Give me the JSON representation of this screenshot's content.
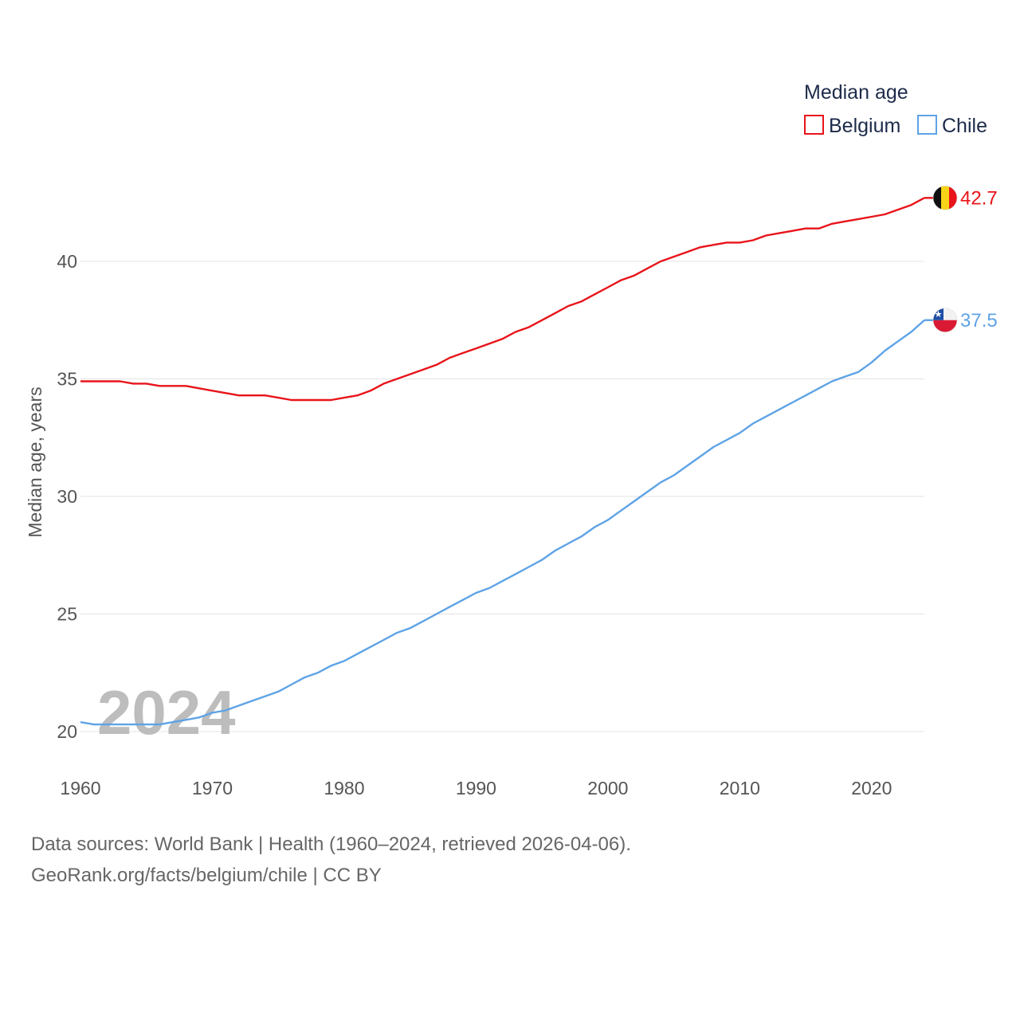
{
  "chart_data": {
    "type": "line",
    "ylabel": "Median age, years",
    "xlabel": "",
    "xlim": [
      1960,
      2024
    ],
    "ylim": [
      19,
      43
    ],
    "yticks": [
      20,
      25,
      30,
      35,
      40
    ],
    "xticks": [
      1960,
      1970,
      1980,
      1990,
      2000,
      2010,
      2020
    ],
    "legend": {
      "title": "Median age",
      "position": "top-right"
    },
    "year_label": "2024",
    "x": [
      1960,
      1961,
      1962,
      1963,
      1964,
      1965,
      1966,
      1967,
      1968,
      1969,
      1970,
      1971,
      1972,
      1973,
      1974,
      1975,
      1976,
      1977,
      1978,
      1979,
      1980,
      1981,
      1982,
      1983,
      1984,
      1985,
      1986,
      1987,
      1988,
      1989,
      1990,
      1991,
      1992,
      1993,
      1994,
      1995,
      1996,
      1997,
      1998,
      1999,
      2000,
      2001,
      2002,
      2003,
      2004,
      2005,
      2006,
      2007,
      2008,
      2009,
      2010,
      2011,
      2012,
      2013,
      2014,
      2015,
      2016,
      2017,
      2018,
      2019,
      2020,
      2021,
      2022,
      2023,
      2024
    ],
    "series": [
      {
        "name": "Belgium",
        "color": "#e8141a",
        "end_label": "42.7",
        "flag": "belgium",
        "values": [
          34.9,
          34.9,
          34.9,
          34.9,
          34.8,
          34.8,
          34.7,
          34.7,
          34.7,
          34.6,
          34.5,
          34.4,
          34.3,
          34.3,
          34.3,
          34.2,
          34.1,
          34.1,
          34.1,
          34.1,
          34.2,
          34.3,
          34.5,
          34.8,
          35.0,
          35.2,
          35.4,
          35.6,
          35.9,
          36.1,
          36.3,
          36.5,
          36.7,
          37.0,
          37.2,
          37.5,
          37.8,
          38.1,
          38.3,
          38.6,
          38.9,
          39.2,
          39.4,
          39.7,
          40.0,
          40.2,
          40.4,
          40.6,
          40.7,
          40.8,
          40.8,
          40.9,
          41.1,
          41.2,
          41.3,
          41.4,
          41.4,
          41.6,
          41.7,
          41.8,
          41.9,
          42.0,
          42.2,
          42.4,
          42.7
        ]
      },
      {
        "name": "Chile",
        "color": "#5ea3e6",
        "end_label": "37.5",
        "flag": "chile",
        "values": [
          20.4,
          20.3,
          20.3,
          20.3,
          20.3,
          20.3,
          20.3,
          20.4,
          20.5,
          20.6,
          20.8,
          20.9,
          21.1,
          21.3,
          21.5,
          21.7,
          22.0,
          22.3,
          22.5,
          22.8,
          23.0,
          23.3,
          23.6,
          23.9,
          24.2,
          24.4,
          24.7,
          25.0,
          25.3,
          25.6,
          25.9,
          26.1,
          26.4,
          26.7,
          27.0,
          27.3,
          27.7,
          28.0,
          28.3,
          28.7,
          29.0,
          29.4,
          29.8,
          30.2,
          30.6,
          30.9,
          31.3,
          31.7,
          32.1,
          32.4,
          32.7,
          33.1,
          33.4,
          33.7,
          34.0,
          34.3,
          34.6,
          34.9,
          35.1,
          35.3,
          35.7,
          36.2,
          36.6,
          37.0,
          37.5
        ]
      }
    ]
  },
  "footer": {
    "line1": "Data sources: World Bank | Health (1960–2024, retrieved 2026-04-06).",
    "line2": "GeoRank.org/facts/belgium/chile | CC BY"
  }
}
